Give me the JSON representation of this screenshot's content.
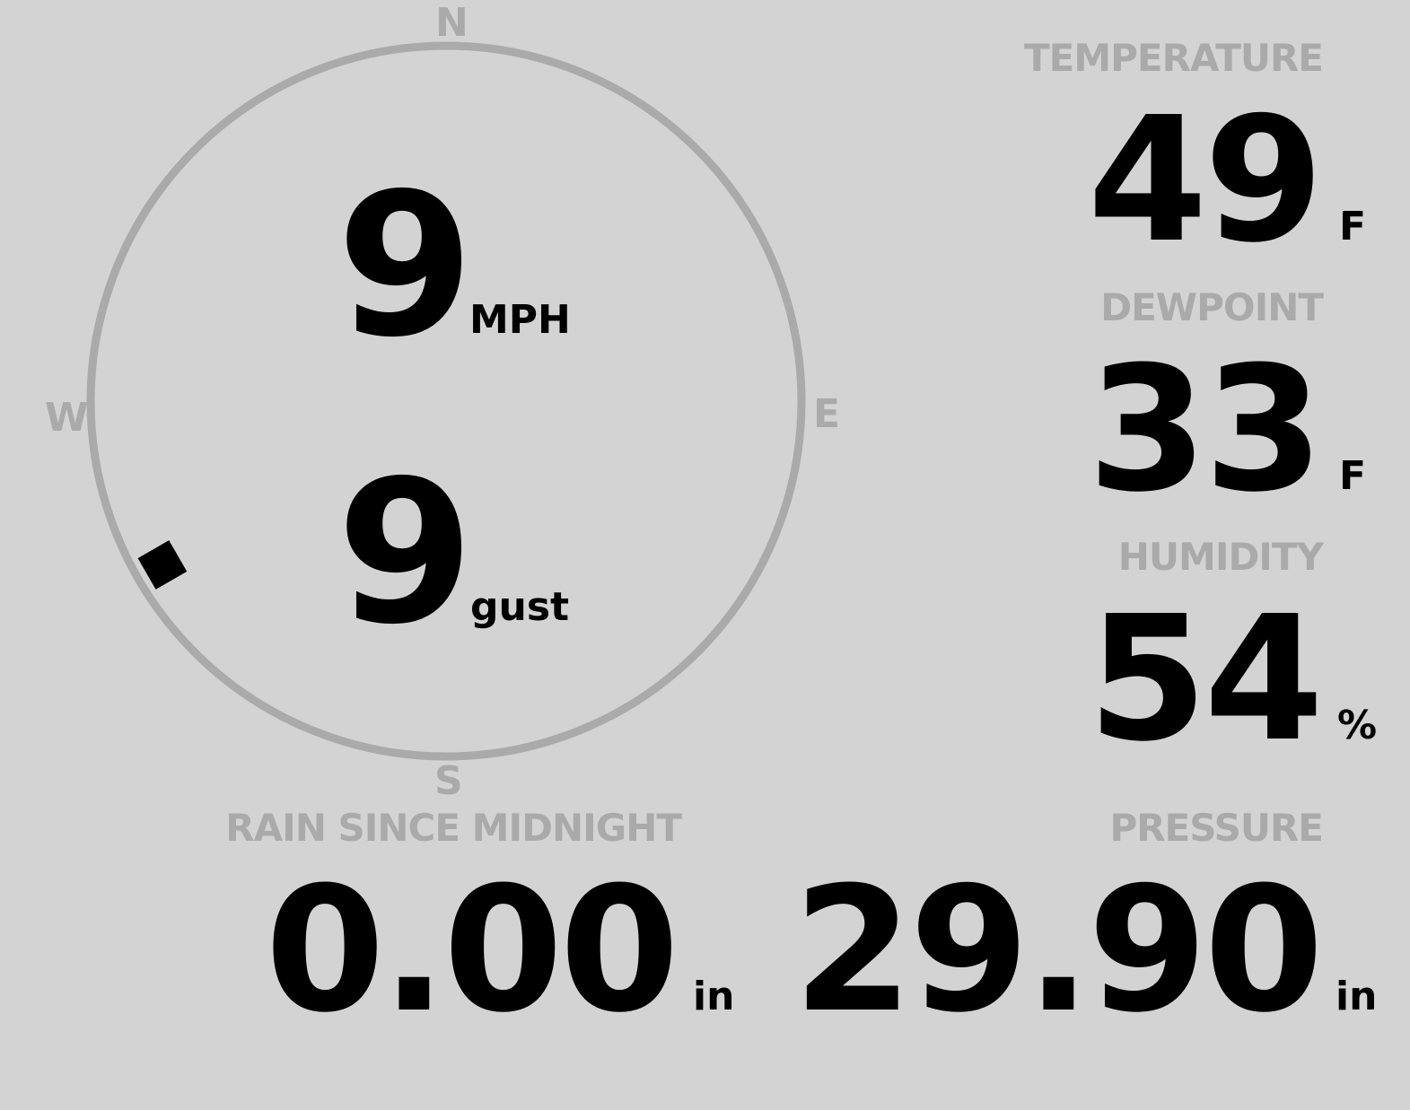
{
  "wind": {
    "speed": "9",
    "speed_unit": "MPH",
    "gust": "9",
    "gust_unit": "gust",
    "direction_degrees": 240,
    "compass": {
      "n": "N",
      "e": "E",
      "s": "S",
      "w": "W"
    }
  },
  "temperature": {
    "label": "TEMPERATURE",
    "value": "49",
    "unit": "F"
  },
  "dewpoint": {
    "label": "DEWPOINT",
    "value": "33",
    "unit": "F"
  },
  "humidity": {
    "label": "HUMIDITY",
    "value": "54",
    "unit": "%"
  },
  "rain": {
    "label": "RAIN SINCE MIDNIGHT",
    "value": "0.00",
    "unit": "in"
  },
  "pressure": {
    "label": "PRESSURE",
    "value": "29.90",
    "unit": "in"
  },
  "colors": {
    "background": "#d3d3d3",
    "label": "#aaaaaa",
    "value": "#000000"
  }
}
